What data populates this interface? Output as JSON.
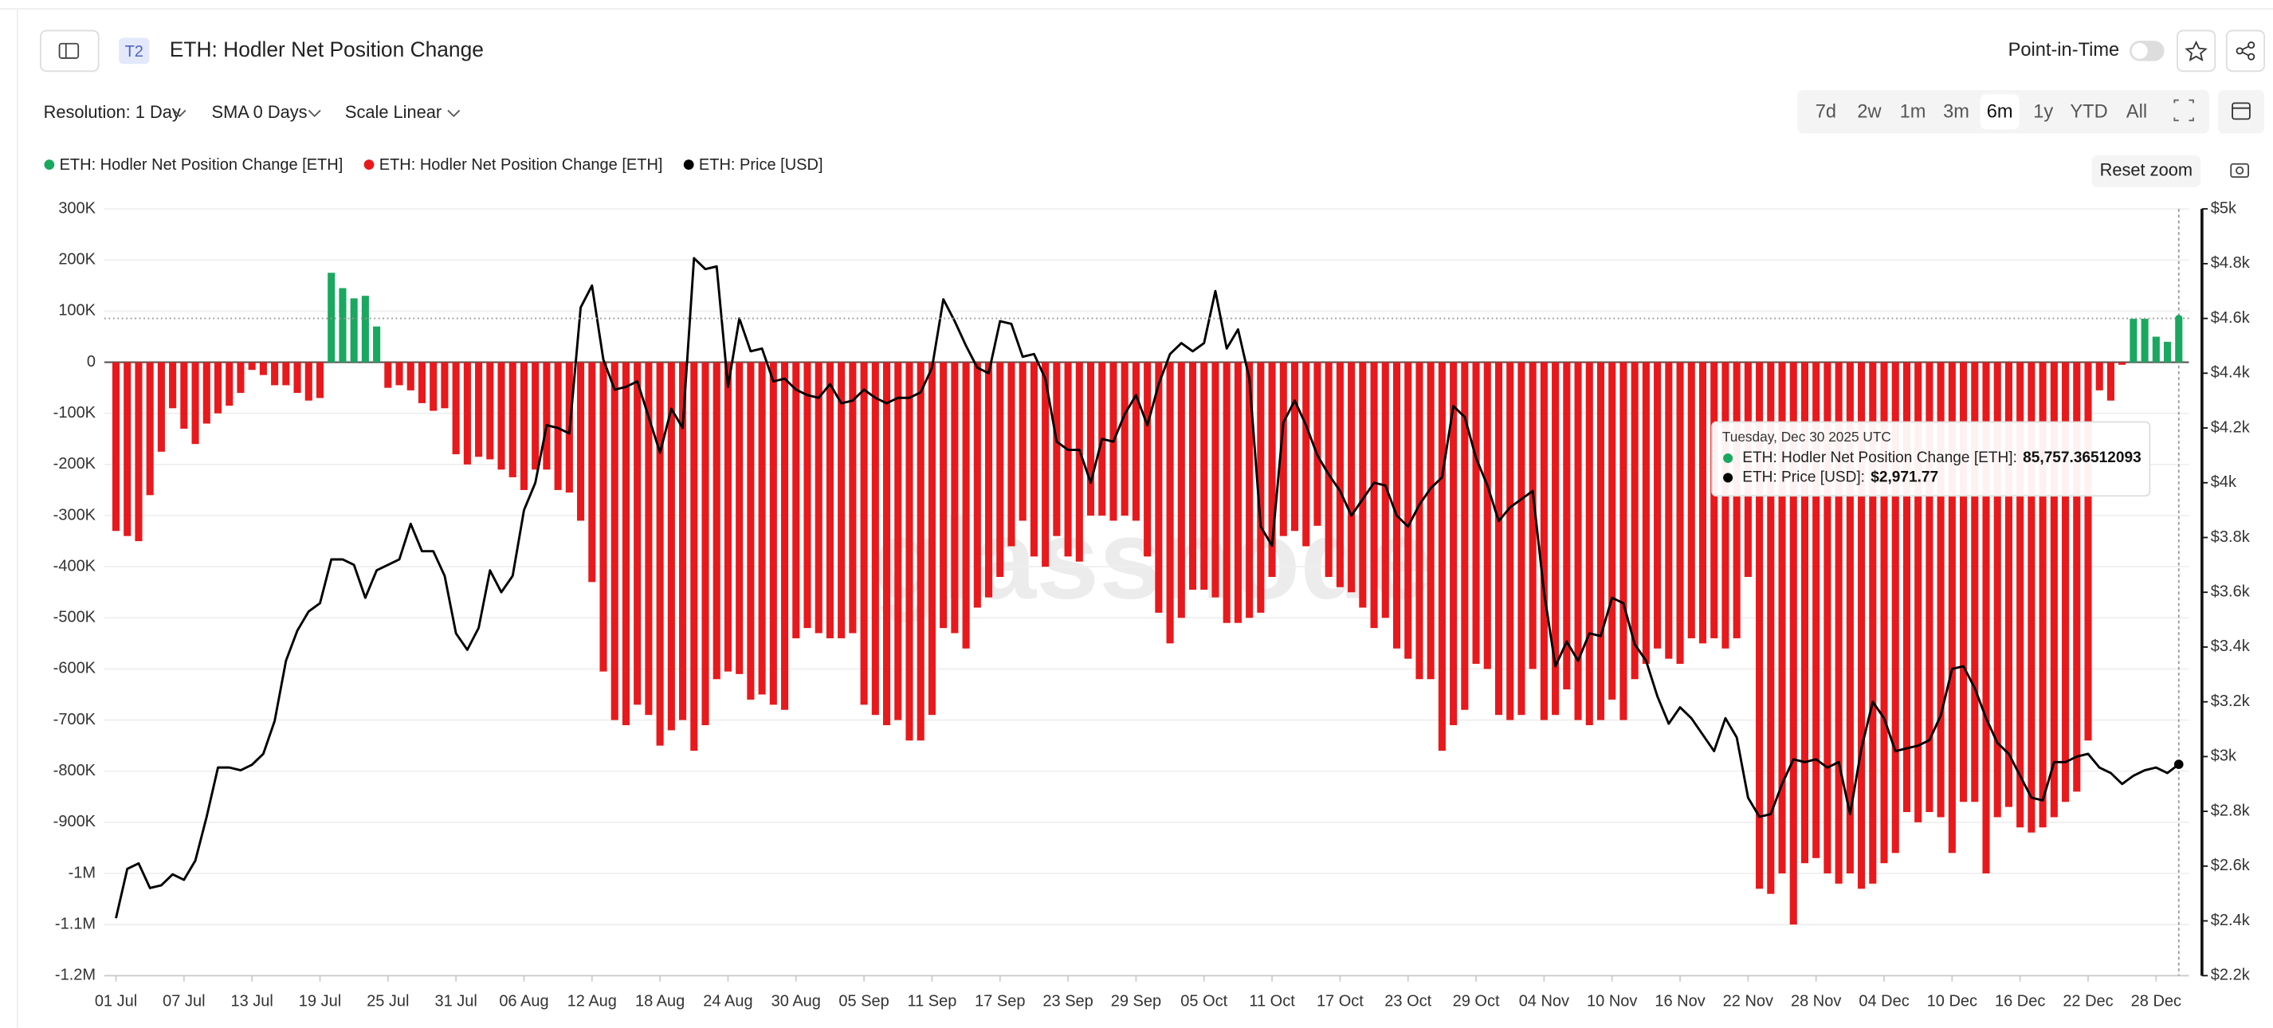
{
  "header": {
    "badge": "T2",
    "title": "ETH: Hodler Net Position Change",
    "point_in_time": "Point-in-Time"
  },
  "toolbar": {
    "resolution": "Resolution: 1 Day",
    "sma": "SMA 0 Days",
    "scale": "Scale Linear",
    "ranges": [
      "7d",
      "2w",
      "1m",
      "3m",
      "6m",
      "1y",
      "YTD",
      "All"
    ],
    "active_range": "6m",
    "reset_zoom": "Reset zoom"
  },
  "tooltip": {
    "date": "Tuesday, Dec 30 2025 UTC",
    "rows": [
      {
        "label": "ETH: Hodler Net Position Change [ETH]:",
        "value": "85,757.36512093",
        "color": "#1aa860"
      },
      {
        "label": "ETH: Price [USD]:",
        "value": "$2,971.77",
        "color": "#000000"
      }
    ]
  },
  "watermark": "glassnode",
  "chart_data": {
    "type": "bar_line",
    "categories": [
      "01 Jul",
      null,
      null,
      null,
      null,
      null,
      "07 Jul",
      null,
      null,
      null,
      null,
      null,
      "13 Jul",
      null,
      null,
      null,
      null,
      null,
      "19 Jul",
      null,
      null,
      null,
      null,
      null,
      "25 Jul",
      null,
      null,
      null,
      null,
      null,
      "31 Jul",
      null,
      null,
      null,
      null,
      null,
      "06 Aug",
      null,
      null,
      null,
      null,
      null,
      "12 Aug",
      null,
      null,
      null,
      null,
      null,
      "18 Aug",
      null,
      null,
      null,
      null,
      null,
      "24 Aug",
      null,
      null,
      null,
      null,
      null,
      "30 Aug",
      null,
      null,
      null,
      null,
      null,
      "05 Sep",
      null,
      null,
      null,
      null,
      null,
      "11 Sep",
      null,
      null,
      null,
      null,
      null,
      "17 Sep",
      null,
      null,
      null,
      null,
      null,
      "23 Sep",
      null,
      null,
      null,
      null,
      null,
      "29 Sep",
      null,
      null,
      null,
      null,
      null,
      "05 Oct",
      null,
      null,
      null,
      null,
      null,
      "11 Oct",
      null,
      null,
      null,
      null,
      null,
      "17 Oct",
      null,
      null,
      null,
      null,
      null,
      "23 Oct",
      null,
      null,
      null,
      null,
      null,
      "29 Oct",
      null,
      null,
      null,
      null,
      null,
      "04 Nov",
      null,
      null,
      null,
      null,
      null,
      "10 Nov",
      null,
      null,
      null,
      null,
      null,
      "16 Nov",
      null,
      null,
      null,
      null,
      null,
      "22 Nov",
      null,
      null,
      null,
      null,
      null,
      "28 Nov",
      null,
      null,
      null,
      null,
      null,
      "04 Dec",
      null,
      null,
      null,
      null,
      null,
      "10 Dec",
      null,
      null,
      null,
      null,
      null,
      "16 Dec",
      null,
      null,
      null,
      null,
      null,
      "22 Dec",
      null,
      null,
      null,
      null,
      null,
      "28 Dec",
      null,
      null
    ],
    "series": [
      {
        "name": "ETH: Hodler Net Position Change [ETH]",
        "color": "#1aa860",
        "values": [
          null,
          null,
          null,
          null,
          null,
          null,
          null,
          null,
          null,
          null,
          null,
          null,
          null,
          null,
          null,
          null,
          null,
          null,
          null,
          175000,
          145000,
          125000,
          130000,
          70000,
          null,
          null,
          null,
          null,
          null,
          null,
          null,
          null,
          null,
          null,
          null,
          null,
          null,
          null,
          null,
          null,
          null,
          null,
          null,
          null,
          null,
          null,
          null,
          null,
          null,
          null,
          null,
          null,
          null,
          null,
          null,
          null,
          null,
          null,
          null,
          null,
          null,
          null,
          null,
          null,
          null,
          null,
          null,
          null,
          null,
          null,
          null,
          null,
          null,
          null,
          null,
          null,
          null,
          null,
          null,
          null,
          null,
          null,
          null,
          null,
          null,
          null,
          null,
          null,
          null,
          null,
          null,
          null,
          null,
          null,
          null,
          null,
          null,
          null,
          null,
          null,
          null,
          null,
          null,
          null,
          null,
          null,
          null,
          null,
          null,
          null,
          null,
          null,
          null,
          null,
          null,
          null,
          null,
          null,
          null,
          null,
          null,
          null,
          null,
          null,
          null,
          null,
          null,
          null,
          null,
          null,
          null,
          null,
          null,
          null,
          null,
          null,
          null,
          null,
          null,
          null,
          null,
          null,
          null,
          null,
          null,
          null,
          null,
          null,
          null,
          null,
          null,
          null,
          null,
          null,
          null,
          null,
          null,
          null,
          null,
          null,
          null,
          null,
          null,
          null,
          null,
          null,
          null,
          null,
          null,
          null,
          null,
          null,
          null,
          null,
          null,
          null,
          null,
          null,
          85000,
          85000,
          50000,
          40000,
          85757.36512093
        ]
      },
      {
        "name": "ETH: Hodler Net Position Change [ETH]",
        "color": "#e8191c",
        "values": [
          -330000,
          -340000,
          -350000,
          -260000,
          -175000,
          -90000,
          -130000,
          -160000,
          -120000,
          -100000,
          -85000,
          -60000,
          -15000,
          -25000,
          -45000,
          -45000,
          -60000,
          -75000,
          -70000,
          null,
          null,
          null,
          null,
          null,
          -50000,
          -45000,
          -55000,
          -80000,
          -95000,
          -90000,
          -180000,
          -200000,
          -185000,
          -190000,
          -210000,
          -225000,
          -250000,
          -210000,
          -210000,
          -250000,
          -255000,
          -310000,
          -430000,
          -605000,
          -700000,
          -710000,
          -670000,
          -690000,
          -750000,
          -720000,
          -700000,
          -760000,
          -710000,
          -620000,
          -605000,
          -610000,
          -660000,
          -650000,
          -670000,
          -680000,
          -540000,
          -520000,
          -530000,
          -540000,
          -540000,
          -530000,
          -670000,
          -690000,
          -710000,
          -700000,
          -740000,
          -740000,
          -690000,
          -520000,
          -530000,
          -560000,
          -480000,
          -460000,
          -420000,
          -360000,
          -310000,
          -380000,
          -400000,
          -340000,
          -380000,
          -390000,
          -300000,
          -300000,
          -310000,
          -300000,
          -310000,
          -380000,
          -490000,
          -550000,
          -500000,
          -445000,
          -445000,
          -460000,
          -510000,
          -510000,
          -500000,
          -490000,
          -420000,
          -340000,
          -330000,
          -360000,
          -320000,
          -420000,
          -440000,
          -450000,
          -480000,
          -520000,
          -500000,
          -560000,
          -580000,
          -620000,
          -620000,
          -760000,
          -710000,
          -680000,
          -590000,
          -600000,
          -690000,
          -700000,
          -690000,
          -600000,
          -700000,
          -690000,
          -640000,
          -700000,
          -710000,
          -700000,
          -660000,
          -700000,
          -620000,
          -590000,
          -560000,
          -580000,
          -590000,
          -540000,
          -550000,
          -540000,
          -560000,
          -540000,
          -420000,
          -1030000,
          -1040000,
          -1000000,
          -1100000,
          -980000,
          -970000,
          -1000000,
          -1020000,
          -1000000,
          -1030000,
          -1020000,
          -980000,
          -960000,
          -880000,
          -900000,
          -880000,
          -890000,
          -960000,
          -860000,
          -860000,
          -1000000,
          -890000,
          -870000,
          -910000,
          -920000,
          -910000,
          -890000,
          -860000,
          -840000,
          -740000,
          -55000,
          -75000,
          -5000,
          null,
          null,
          null,
          null,
          null
        ]
      },
      {
        "name": "ETH: Price [USD]",
        "color": "#000000",
        "axis": "y2",
        "values": [
          2410,
          2590,
          2610,
          2520,
          2530,
          2570,
          2550,
          2620,
          2780,
          2960,
          2960,
          2950,
          2970,
          3010,
          3130,
          3350,
          3460,
          3530,
          3560,
          3720,
          3720,
          3700,
          3580,
          3680,
          3700,
          3720,
          3850,
          3750,
          3750,
          3660,
          3450,
          3390,
          3470,
          3680,
          3600,
          3660,
          3900,
          4000,
          4210,
          4200,
          4180,
          4640,
          4720,
          4450,
          4340,
          4350,
          4370,
          4240,
          4110,
          4270,
          4200,
          4820,
          4780,
          4790,
          4350,
          4600,
          4480,
          4490,
          4370,
          4380,
          4340,
          4320,
          4310,
          4360,
          4290,
          4300,
          4340,
          4310,
          4290,
          4310,
          4310,
          4330,
          4420,
          4670,
          4590,
          4500,
          4420,
          4400,
          4590,
          4580,
          4460,
          4470,
          4380,
          4150,
          4120,
          4120,
          4000,
          4160,
          4150,
          4250,
          4320,
          4210,
          4360,
          4470,
          4510,
          4480,
          4510,
          4700,
          4490,
          4560,
          4380,
          3840,
          3770,
          4220,
          4300,
          4210,
          4100,
          4030,
          3970,
          3880,
          3940,
          4000,
          3990,
          3880,
          3840,
          3920,
          3980,
          4020,
          4280,
          4240,
          4090,
          3990,
          3860,
          3910,
          3940,
          3970,
          3600,
          3330,
          3420,
          3350,
          3450,
          3440,
          3580,
          3560,
          3410,
          3350,
          3220,
          3120,
          3180,
          3140,
          3080,
          3020,
          3140,
          3070,
          2850,
          2780,
          2790,
          2900,
          2990,
          2980,
          2990,
          2960,
          2980,
          2790,
          3030,
          3200,
          3140,
          3020,
          3030,
          3040,
          3060,
          3150,
          3320,
          3330,
          3250,
          3140,
          3050,
          3010,
          2930,
          2850,
          2840,
          2980,
          2980,
          3000,
          3010,
          2960,
          2940,
          2900,
          2930,
          2950,
          2960,
          2940,
          2971.77
        ]
      }
    ],
    "ylim": [
      -1200000,
      300000
    ],
    "yticks": [
      {
        "value": 300000,
        "label": "300K"
      },
      {
        "value": 200000,
        "label": "200K"
      },
      {
        "value": 100000,
        "label": "100K"
      },
      0,
      {
        "value": -100000,
        "label": "-100K"
      },
      {
        "value": -200000,
        "label": "-200K"
      },
      {
        "value": -300000,
        "label": "-300K"
      },
      {
        "value": -400000,
        "label": "-400K"
      },
      {
        "value": -500000,
        "label": "-500K"
      },
      {
        "value": -600000,
        "label": "-600K"
      },
      {
        "value": -700000,
        "label": "-700K"
      },
      {
        "value": -800000,
        "label": "-800K"
      },
      {
        "value": -900000,
        "label": "-900K"
      },
      {
        "value": -1000000,
        "label": "-1M"
      },
      {
        "value": -1100000,
        "label": "-1.1M"
      },
      {
        "value": -1200000,
        "label": "-1.2M"
      }
    ],
    "y2lim": [
      2200,
      5000
    ],
    "y2ticks": [
      {
        "value": 5000,
        "label": "$5k"
      },
      {
        "value": 4800,
        "label": "$4.8k"
      },
      {
        "value": 4600,
        "label": "$4.6k"
      },
      {
        "value": 4400,
        "label": "$4.4k"
      },
      {
        "value": 4200,
        "label": "$4.2k"
      },
      {
        "value": 4000,
        "label": "$4k"
      },
      {
        "value": 3800,
        "label": "$3.8k"
      },
      {
        "value": 3600,
        "label": "$3.6k"
      },
      {
        "value": 3400,
        "label": "$3.4k"
      },
      {
        "value": 3200,
        "label": "$3.2k"
      },
      {
        "value": 3000,
        "label": "$3k"
      },
      {
        "value": 2800,
        "label": "$2.8k"
      },
      {
        "value": 2600,
        "label": "$2.6k"
      },
      {
        "value": 2400,
        "label": "$2.4k"
      },
      {
        "value": 2200,
        "label": "$2.2k"
      }
    ],
    "grid": true
  }
}
